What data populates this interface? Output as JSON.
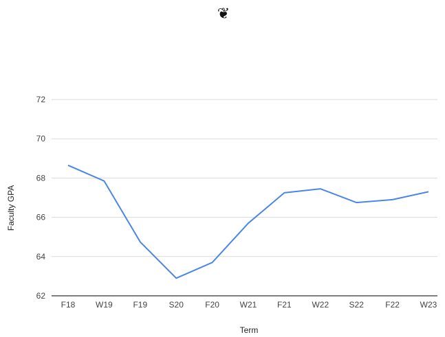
{
  "chart_data": {
    "type": "line",
    "title": "",
    "xlabel": "Term",
    "ylabel": "Faculty GPA",
    "categories": [
      "F18",
      "W19",
      "F19",
      "S20",
      "F20",
      "W21",
      "F21",
      "W22",
      "S22",
      "F22",
      "W23"
    ],
    "series": [
      {
        "values": [
          68.65,
          67.85,
          64.75,
          62.9,
          63.7,
          65.7,
          67.25,
          67.45,
          66.75,
          66.9,
          67.3
        ],
        "color": "#4a86e8"
      }
    ],
    "ylim": [
      62,
      72
    ],
    "yticks": [
      "62",
      "64",
      "66",
      "68",
      "70",
      "72"
    ],
    "grid": true,
    "legend": "none"
  },
  "header": {
    "logo_icon": "apple-icon",
    "logo_glyph": "❦"
  }
}
